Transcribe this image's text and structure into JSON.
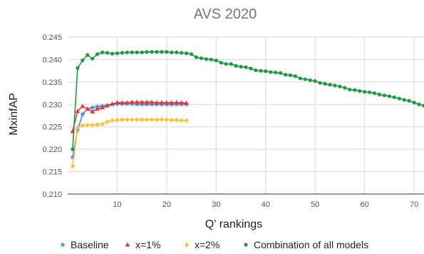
{
  "chart_data": {
    "type": "line",
    "title": "AVS 2020",
    "xlabel": "Q' rankings",
    "ylabel": "MxinfAP",
    "xlim": [
      0,
      72
    ],
    "ylim": [
      0.21,
      0.245
    ],
    "x_ticks": [
      "10",
      "20",
      "30",
      "40",
      "50",
      "60",
      "70"
    ],
    "y_ticks": [
      "0.210",
      "0.215",
      "0.220",
      "0.225",
      "0.230",
      "0.235",
      "0.240",
      "0.245"
    ],
    "grid": true,
    "legend_position": "bottom",
    "series": [
      {
        "name": "Baseline",
        "color": "#4a86e8",
        "marker": "star",
        "x": [
          1,
          2,
          3,
          4,
          5,
          6,
          7,
          8,
          9,
          10,
          11,
          12,
          13,
          14,
          15,
          16,
          17,
          18,
          19,
          20,
          21,
          22,
          23,
          24
        ],
        "y": [
          0.2182,
          0.2243,
          0.2278,
          0.229,
          0.2293,
          0.2295,
          0.2296,
          0.2298,
          0.23,
          0.2301,
          0.2301,
          0.2301,
          0.2301,
          0.23,
          0.23,
          0.23,
          0.23,
          0.23,
          0.23,
          0.23,
          0.23,
          0.23,
          0.23,
          0.23
        ]
      },
      {
        "name": "x=1%",
        "color": "#e53935",
        "marker": "triangle",
        "x": [
          1,
          2,
          3,
          4,
          5,
          6,
          7,
          8,
          9,
          10,
          11,
          12,
          13,
          14,
          15,
          16,
          17,
          18,
          19,
          20,
          21,
          22,
          23,
          24
        ],
        "y": [
          0.224,
          0.2285,
          0.2296,
          0.229,
          0.2284,
          0.229,
          0.2293,
          0.2297,
          0.2301,
          0.2304,
          0.2304,
          0.2304,
          0.2305,
          0.2305,
          0.2305,
          0.2305,
          0.2305,
          0.2304,
          0.2304,
          0.2304,
          0.2304,
          0.2304,
          0.2304,
          0.2303
        ]
      },
      {
        "name": "x=2%",
        "color": "#fbc02d",
        "marker": "diamond",
        "x": [
          1,
          2,
          3,
          4,
          5,
          6,
          7,
          8,
          9,
          10,
          11,
          12,
          13,
          14,
          15,
          16,
          17,
          18,
          19,
          20,
          21,
          22,
          23,
          24
        ],
        "y": [
          0.2162,
          0.2248,
          0.2253,
          0.2254,
          0.2254,
          0.2255,
          0.2256,
          0.2261,
          0.2264,
          0.2265,
          0.2266,
          0.2266,
          0.2266,
          0.2266,
          0.2266,
          0.2266,
          0.2266,
          0.2266,
          0.2266,
          0.2266,
          0.2265,
          0.2265,
          0.2264,
          0.2264
        ]
      },
      {
        "name": "Combination of all models",
        "color": "#1e9a42",
        "marker": "circle",
        "x": [
          1,
          2,
          3,
          4,
          5,
          6,
          7,
          8,
          9,
          10,
          11,
          12,
          13,
          14,
          15,
          16,
          17,
          18,
          19,
          20,
          21,
          22,
          23,
          24,
          25,
          26,
          27,
          28,
          29,
          30,
          31,
          32,
          33,
          34,
          35,
          36,
          37,
          38,
          39,
          40,
          41,
          42,
          43,
          44,
          45,
          46,
          47,
          48,
          49,
          50,
          51,
          52,
          53,
          54,
          55,
          56,
          57,
          58,
          59,
          60,
          61,
          62,
          63,
          64,
          65,
          66,
          67,
          68,
          69,
          70,
          71,
          72
        ],
        "y": [
          0.22,
          0.2381,
          0.2398,
          0.241,
          0.2402,
          0.2412,
          0.2416,
          0.2415,
          0.2413,
          0.2414,
          0.2415,
          0.2416,
          0.2416,
          0.2416,
          0.2416,
          0.2417,
          0.2417,
          0.2417,
          0.2417,
          0.2417,
          0.2416,
          0.2416,
          0.2415,
          0.2414,
          0.2412,
          0.2405,
          0.2403,
          0.2401,
          0.24,
          0.2398,
          0.2393,
          0.239,
          0.239,
          0.2386,
          0.2384,
          0.2383,
          0.238,
          0.2376,
          0.2375,
          0.2374,
          0.2372,
          0.2371,
          0.237,
          0.2366,
          0.2365,
          0.2363,
          0.2358,
          0.2356,
          0.2354,
          0.2352,
          0.2348,
          0.2346,
          0.2344,
          0.2342,
          0.234,
          0.2337,
          0.2333,
          0.2332,
          0.233,
          0.2328,
          0.2327,
          0.2325,
          0.2322,
          0.232,
          0.2318,
          0.2316,
          0.2313,
          0.231,
          0.2308,
          0.2304,
          0.23,
          0.2297
        ]
      }
    ]
  }
}
